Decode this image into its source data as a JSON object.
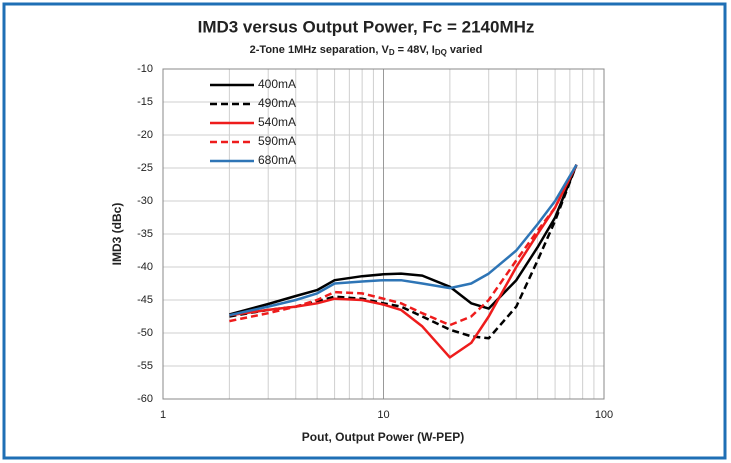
{
  "chart_data": {
    "type": "line",
    "title": "IMD3 versus Output Power, Fc = 2140MHz",
    "subtitle": [
      "2-Tone 1MHz separation, V",
      "D",
      " = 48V, I",
      "DQ",
      " varied"
    ],
    "x_label": "Pout, Output Power (W-PEP)",
    "y_label": "IMD3 (dBc)",
    "x_log": true,
    "xlim": [
      1,
      100
    ],
    "xticks": [
      1,
      10,
      100
    ],
    "x_minor_grid": [
      2,
      3,
      4,
      5,
      6,
      7,
      8,
      9,
      20,
      30,
      40,
      50,
      60,
      70,
      80,
      90
    ],
    "ylim": [
      -60,
      -10
    ],
    "yticks": [
      -60,
      -55,
      -50,
      -45,
      -40,
      -35,
      -30,
      -25,
      -20,
      -15,
      -10
    ],
    "grid": true,
    "legend": "upper-left",
    "x": [
      2,
      3,
      4,
      5,
      6,
      8,
      10,
      12,
      15,
      20,
      25,
      30,
      40,
      50,
      60,
      75
    ],
    "series": [
      {
        "name": "400mA",
        "color": "#000000",
        "dash": false,
        "values": [
          -47.2,
          -45.6,
          -44.4,
          -43.5,
          -42,
          -41.4,
          -41.1,
          -41,
          -41.3,
          -43,
          -45.5,
          -46.3,
          -42,
          -37,
          -32.5,
          -24.5
        ]
      },
      {
        "name": "490mA",
        "color": "#000000",
        "dash": true,
        "values": [
          -47.5,
          -46.5,
          -46,
          -45.2,
          -44.5,
          -44.8,
          -45.5,
          -46,
          -47.5,
          -49.5,
          -50.5,
          -50.8,
          -46,
          -39,
          -33,
          -24.5
        ]
      },
      {
        "name": "540mA",
        "color": "#ee1c1c",
        "dash": false,
        "values": [
          -47.3,
          -46.5,
          -46,
          -45.5,
          -44.8,
          -45,
          -45.7,
          -46.5,
          -49,
          -53.7,
          -51.5,
          -47.5,
          -40,
          -35,
          -31,
          -24.5
        ]
      },
      {
        "name": "590mA",
        "color": "#ee1c1c",
        "dash": true,
        "values": [
          -48.2,
          -47,
          -46,
          -45,
          -43.8,
          -44,
          -44.8,
          -45.5,
          -47,
          -48.8,
          -47.5,
          -45,
          -39,
          -34.5,
          -31,
          -24.5
        ]
      },
      {
        "name": "680mA",
        "color": "#2e75b6",
        "dash": false,
        "values": [
          -47.3,
          -46,
          -45,
          -44,
          -42.5,
          -42.2,
          -42,
          -42,
          -42.5,
          -43.2,
          -42.5,
          -41,
          -37.5,
          -33.5,
          -30,
          -24.5
        ]
      }
    ]
  }
}
